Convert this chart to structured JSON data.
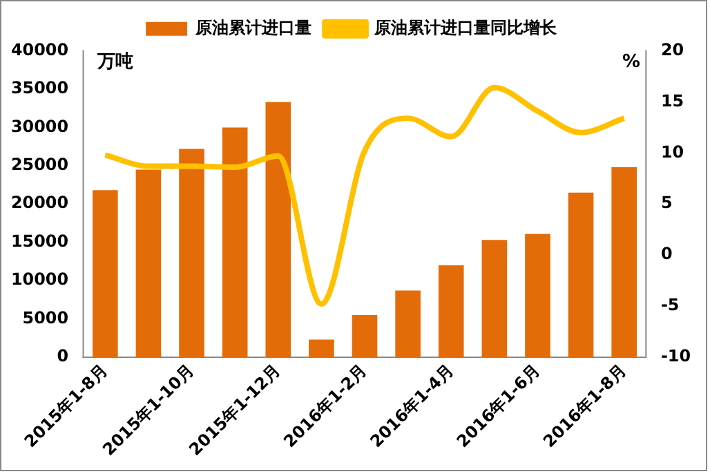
{
  "chart_data": {
    "type": "bar",
    "categories": [
      "2015年1-8月",
      null,
      "2015年1-10月",
      null,
      "2015年1-12月",
      null,
      "2016年1-2月",
      null,
      "2016年1-4月",
      null,
      "2016年1-6月",
      null,
      "2016年1-8月"
    ],
    "series": [
      {
        "name": "原油累计进口量",
        "color": "#e36c09",
        "values": [
          21800,
          24500,
          27200,
          30000,
          33300,
          2300,
          5500,
          8700,
          12000,
          15300,
          16100,
          21500,
          24800
        ]
      },
      {
        "name": "原油累计进口量同比增长",
        "type": "line",
        "axis": "y2",
        "color": "#ffc000",
        "values": [
          9.8,
          8.7,
          8.7,
          8.6,
          9.7,
          -4.8,
          10.2,
          13.4,
          11.6,
          16.4,
          14.1,
          12.0,
          13.4
        ]
      }
    ],
    "ylabel": "万吨",
    "y2label": "%",
    "ylim": [
      0,
      40000
    ],
    "yticks": [
      0,
      5000,
      10000,
      15000,
      20000,
      25000,
      30000,
      35000,
      40000
    ],
    "y2lim": [
      -10,
      20
    ],
    "y2ticks": [
      -10,
      -5,
      0,
      5,
      10,
      15,
      20
    ],
    "legend": "top",
    "grid": false,
    "marker": "none"
  }
}
